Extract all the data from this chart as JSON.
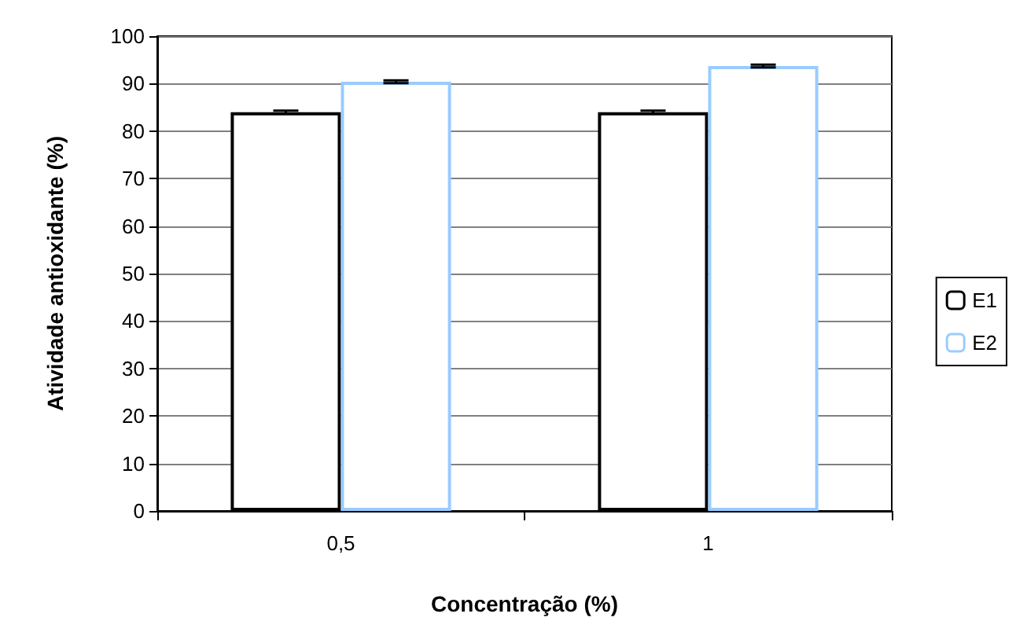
{
  "chart_data": {
    "type": "bar",
    "xlabel": "Concentração (%)",
    "ylabel": "Atividade antioxidante (%)",
    "categories": [
      "0,5",
      "1"
    ],
    "series": [
      {
        "name": "E1",
        "color": "#000000",
        "values": [
          84,
          84
        ],
        "errors": [
          0.3,
          0.3
        ]
      },
      {
        "name": "E2",
        "color": "#99ccff",
        "values": [
          90.4,
          93.7
        ],
        "errors": [
          0.3,
          0.3
        ]
      }
    ],
    "ylim": [
      0,
      100
    ],
    "yticks": [
      0,
      10,
      20,
      30,
      40,
      50,
      60,
      70,
      80,
      90,
      100
    ],
    "grid": "y",
    "legend": "right"
  }
}
